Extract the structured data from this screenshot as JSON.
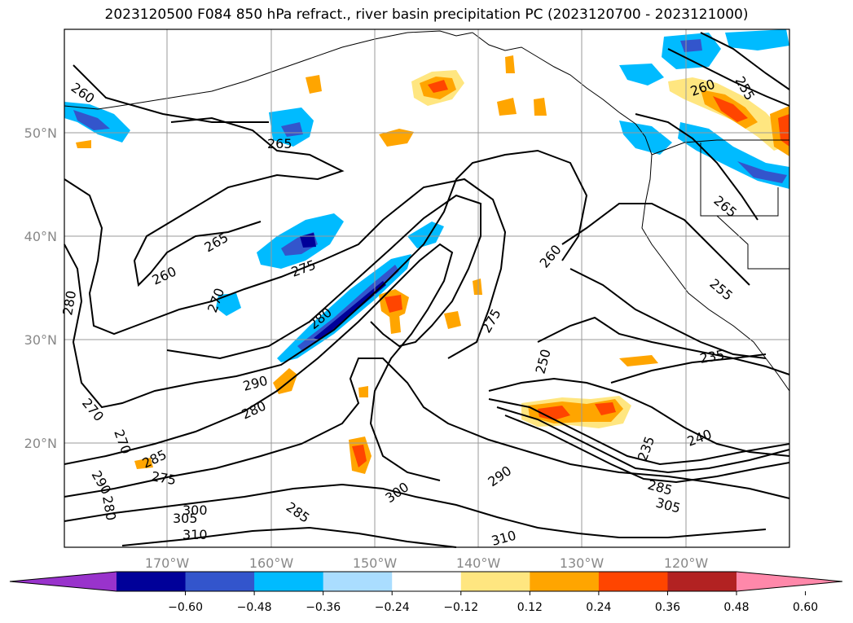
{
  "title": "2023120500 F084 850 hPa refract., river basin precipitation PC (2023120700 - 2023121000)",
  "map": {
    "lat_labels": [
      "50°N",
      "40°N",
      "30°N",
      "20°N"
    ],
    "lon_labels": [
      "170°W",
      "160°W",
      "150°W",
      "140°W",
      "130°W",
      "120°W"
    ],
    "contour_labels": [
      "260",
      "265",
      "260",
      "275",
      "280",
      "270",
      "280",
      "265",
      "260",
      "275",
      "250",
      "235",
      "290",
      "280",
      "270",
      "270",
      "285",
      "290",
      "280",
      "275",
      "300",
      "305",
      "310",
      "285",
      "300",
      "290",
      "235",
      "240",
      "285",
      "305",
      "310",
      "260",
      "255",
      "265",
      "255"
    ],
    "grid": true
  },
  "colorbar": {
    "colors": [
      "#9933cc",
      "#000099",
      "#3355cc",
      "#00bbff",
      "#aaddff",
      "#ffffff",
      "#ffe680",
      "#ffa500",
      "#ff4500",
      "#b22222",
      "#ff88aa"
    ],
    "tick_labels": [
      "−0.60",
      "−0.48",
      "−0.36",
      "−0.24",
      "−0.12",
      "0.12",
      "0.24",
      "0.36",
      "0.48",
      "0.60"
    ],
    "tick_values": [
      -0.6,
      -0.48,
      -0.36,
      -0.24,
      -0.12,
      0.12,
      0.24,
      0.36,
      0.48,
      0.6
    ],
    "extend": "both"
  }
}
